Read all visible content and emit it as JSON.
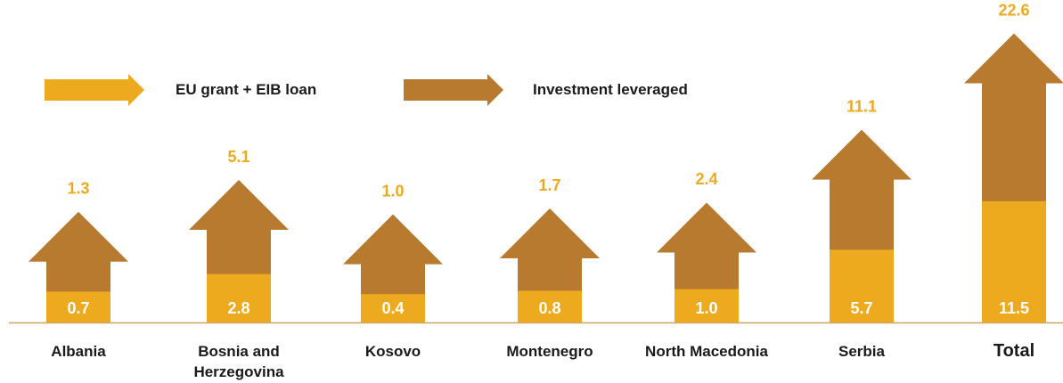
{
  "chart_data": {
    "type": "bar",
    "categories": [
      "Albania",
      "Bosnia and Herzegovina",
      "Kosovo",
      "Montenegro",
      "North Macedonia",
      "Serbia",
      "Total"
    ],
    "series": [
      {
        "name": "EU grant + EIB loan",
        "color": "#eeaa1e",
        "values": [
          0.7,
          2.8,
          0.4,
          0.8,
          1.0,
          5.7,
          11.5
        ],
        "value_labels": [
          "0.7",
          "2.8",
          "0.4",
          "0.8",
          "1.0",
          "5.7",
          "11.5"
        ]
      },
      {
        "name": "Investment leveraged",
        "color": "#b87a2e",
        "values": [
          1.3,
          5.1,
          1.0,
          1.7,
          2.4,
          11.1,
          22.6
        ],
        "value_labels": [
          "1.3",
          "5.1",
          "1.0",
          "1.7",
          "2.4",
          "11.1",
          "22.6"
        ]
      }
    ]
  }
}
